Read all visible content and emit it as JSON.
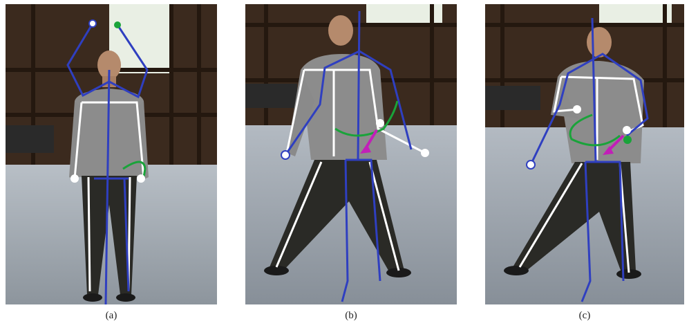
{
  "figure": {
    "panels": [
      {
        "id": "a",
        "caption": "(a)"
      },
      {
        "id": "b",
        "caption": "(b)"
      },
      {
        "id": "c",
        "caption": "(c)"
      }
    ]
  },
  "colors": {
    "skeleton_blue": "#2f3fc0",
    "trace_green": "#1aa33a",
    "arrow_magenta": "#c21fb8",
    "joint_white": "#ffffff",
    "barn_wood": "#3b2a1e",
    "floor": "#9ea5ad"
  }
}
